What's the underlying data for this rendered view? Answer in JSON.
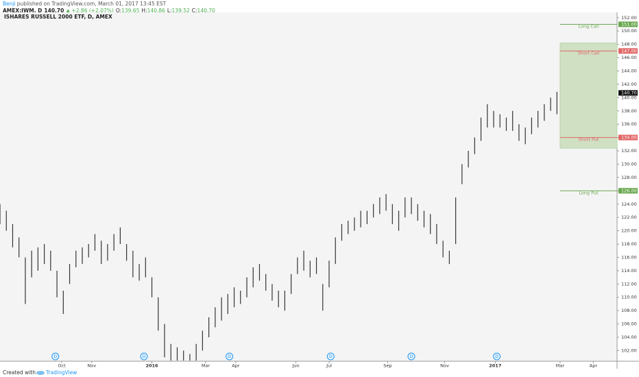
{
  "header": {
    "author": "Benji",
    "published": "published on TradingView.com, March 01, 2017 13:45 EST",
    "symbol": "AMEX:IWM, D",
    "last": "140.70",
    "change": "▲ +2.86 (+2.07%)",
    "ohlc": [
      {
        "key": "O:",
        "value": "139.65"
      },
      {
        "key": "H:",
        "value": "140.86"
      },
      {
        "key": "L:",
        "value": "139.52"
      },
      {
        "key": "C:",
        "value": "140.70"
      }
    ]
  },
  "chart_data": {
    "type": "ohlc",
    "title": "ISHARES RUSSELL 2000 ETF, D, AMEX",
    "color": "#333333",
    "x": [
      0,
      4,
      8,
      12,
      16,
      20,
      24,
      28,
      32,
      36,
      40,
      44,
      48,
      52,
      56,
      60,
      64,
      68,
      72,
      76,
      80,
      84,
      88,
      92,
      96,
      100,
      104,
      108,
      112,
      116,
      120,
      124,
      128,
      132,
      136,
      140,
      144,
      148,
      152,
      156,
      160,
      164,
      168,
      172,
      176,
      180,
      184,
      188,
      192,
      196,
      200,
      204,
      208,
      212,
      216,
      220,
      224,
      228,
      232,
      236,
      240,
      244,
      248,
      252,
      256,
      260,
      264,
      268,
      272,
      276,
      280,
      284,
      288,
      292,
      296,
      300,
      304,
      308,
      312,
      316,
      320,
      324,
      328,
      332,
      336,
      340,
      344,
      348,
      352
    ],
    "highs": [
      124,
      123,
      121,
      119,
      116,
      117,
      117.5,
      118,
      117,
      114,
      111,
      115,
      117,
      117.5,
      118,
      119.5,
      118.5,
      118,
      119.5,
      120.5,
      118,
      117,
      115,
      116,
      113,
      110,
      106,
      103,
      102.5,
      102,
      101.5,
      103,
      105,
      107,
      108.5,
      110,
      110.5,
      111.5,
      111,
      113,
      114.5,
      115,
      113.5,
      112,
      111,
      111,
      113.5,
      116,
      117,
      115.5,
      116,
      112,
      115.5,
      119,
      121,
      121.5,
      122,
      123,
      123,
      124,
      125,
      125.5,
      124,
      123,
      125,
      125,
      124,
      123,
      122.5,
      121,
      118.5,
      117,
      125,
      130,
      132,
      134,
      137,
      139,
      138,
      137.5,
      137,
      138,
      136,
      135.5,
      137,
      138,
      139,
      140,
      140.86
    ],
    "lows": [
      121,
      120,
      117.5,
      116,
      109,
      113,
      114,
      115,
      114,
      110,
      107.5,
      112,
      114.5,
      115,
      116,
      117,
      115,
      115.5,
      117,
      118,
      115.5,
      113,
      112.5,
      113,
      110,
      105,
      101,
      100.5,
      100.5,
      100.5,
      100.5,
      100.5,
      102,
      104,
      105.5,
      106.5,
      107.5,
      108.5,
      109,
      110,
      111.5,
      112.5,
      111,
      109.5,
      108.5,
      108,
      110.5,
      113.5,
      114,
      113,
      113.5,
      108,
      111.5,
      115,
      118.5,
      119.5,
      120,
      120.5,
      121,
      122,
      122.5,
      123,
      121,
      120,
      122,
      122.5,
      121.5,
      120.5,
      119.5,
      118,
      116,
      115,
      118,
      127,
      129.5,
      131.5,
      133.5,
      135.5,
      135.5,
      135.5,
      135,
      135,
      133.5,
      133,
      134.5,
      135.5,
      136.5,
      138,
      137.5
    ],
    "xlim": [
      0,
      390
    ],
    "ylim": [
      100.4,
      152.8
    ],
    "xticks": [
      {
        "value": 39,
        "label": "Oct"
      },
      {
        "value": 58,
        "label": "Nov"
      },
      {
        "value": 96,
        "label": "2016"
      },
      {
        "value": 130,
        "label": "Mar"
      },
      {
        "value": 149,
        "label": "Apr"
      },
      {
        "value": 187,
        "label": "Jun"
      },
      {
        "value": 208,
        "label": "Jul"
      },
      {
        "value": 245,
        "label": "Sep"
      },
      {
        "value": 281,
        "label": "Nov"
      },
      {
        "value": 313,
        "label": "2017"
      },
      {
        "value": 354,
        "label": "Mar"
      },
      {
        "value": 375,
        "label": "Apr"
      }
    ],
    "yticks": [
      {
        "value": 102,
        "label": "102.00"
      },
      {
        "value": 104,
        "label": "104.00"
      },
      {
        "value": 106,
        "label": "106.00"
      },
      {
        "value": 108,
        "label": "108.00"
      },
      {
        "value": 110,
        "label": "110.00"
      },
      {
        "value": 112,
        "label": "112.00"
      },
      {
        "value": 114,
        "label": "114.00"
      },
      {
        "value": 116,
        "label": "116.00"
      },
      {
        "value": 118,
        "label": "118.00"
      },
      {
        "value": 120,
        "label": "120.00"
      },
      {
        "value": 122,
        "label": "122.00"
      },
      {
        "value": 124,
        "label": "124.00"
      },
      {
        "value": 126,
        "label": "126.00"
      },
      {
        "value": 128,
        "label": "128.00"
      },
      {
        "value": 130,
        "label": "130.00"
      },
      {
        "value": 132,
        "label": "132.00"
      },
      {
        "value": 134,
        "label": "134.00"
      },
      {
        "value": 136,
        "label": "136.00"
      },
      {
        "value": 138,
        "label": "138.00"
      },
      {
        "value": 140,
        "label": "140.00"
      },
      {
        "value": 142,
        "label": "142.00"
      },
      {
        "value": 144,
        "label": "144.00"
      },
      {
        "value": 146,
        "label": "146.00"
      },
      {
        "value": 148,
        "label": "148.00"
      },
      {
        "value": 150,
        "label": "150.00"
      },
      {
        "value": 152,
        "label": "152.00"
      }
    ],
    "last_price": {
      "value": 140.7,
      "label": "140.70"
    },
    "zone": {
      "xlim": [
        354,
        390
      ],
      "ylim": [
        132.4,
        148.2
      ],
      "color": "#cfe0c3"
    },
    "levels": [
      {
        "name": "Long Call",
        "price": {
          "value": 151,
          "label": "151.00"
        },
        "color": "#6aa84f"
      },
      {
        "name": "Short Call",
        "price": {
          "value": 147,
          "label": "147.00"
        },
        "color": "#e06666"
      },
      {
        "name": "Short Put",
        "price": {
          "value": 134,
          "label": "134.00"
        },
        "color": "#e06666"
      },
      {
        "name": "Long Put",
        "price": {
          "value": 126,
          "label": "126.00"
        },
        "color": "#6aa84f"
      }
    ],
    "dividends": {
      "label": "D",
      "x": [
        35,
        91,
        145,
        209,
        260,
        314
      ]
    }
  },
  "footer": {
    "created": "Created with",
    "brand": "TradingView"
  }
}
